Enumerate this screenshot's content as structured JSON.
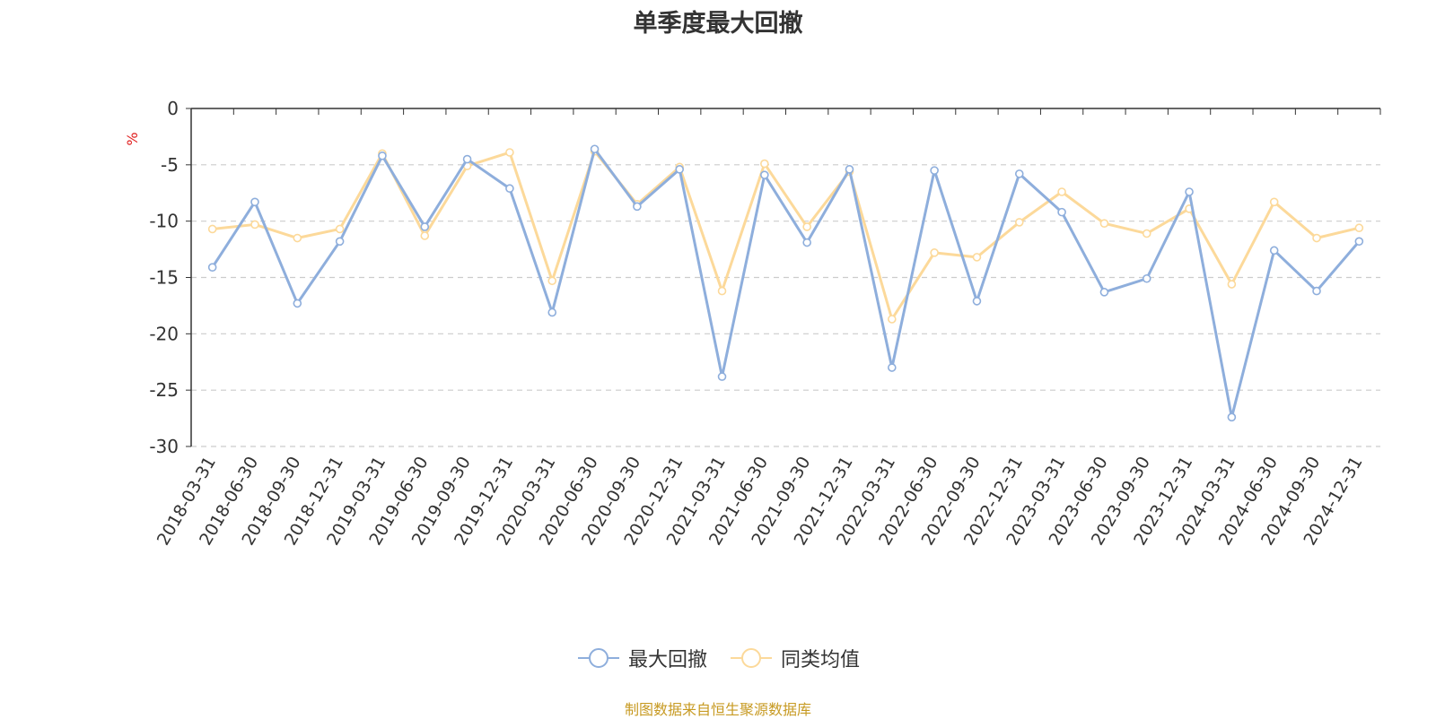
{
  "colors": {
    "series1": "#8eaedc",
    "series2": "#fcd99a",
    "axis": "#333333",
    "grid": "#cccccc",
    "unit": "#e02020",
    "source": "#c79a22"
  },
  "source_note": "制图数据来自恒生聚源数据库",
  "chart_data": {
    "type": "line",
    "title": "单季度最大回撤",
    "ylabel": "%",
    "xlabel": "",
    "ylim": [
      -30,
      0
    ],
    "yticks": [
      0,
      -5,
      -10,
      -15,
      -20,
      -25,
      -30
    ],
    "grid": true,
    "legend_position": "bottom-center",
    "categories": [
      "2018-03-31",
      "2018-06-30",
      "2018-09-30",
      "2018-12-31",
      "2019-03-31",
      "2019-06-30",
      "2019-09-30",
      "2019-12-31",
      "2020-03-31",
      "2020-06-30",
      "2020-09-30",
      "2020-12-31",
      "2021-03-31",
      "2021-06-30",
      "2021-09-30",
      "2021-12-31",
      "2022-03-31",
      "2022-06-30",
      "2022-09-30",
      "2022-12-31",
      "2023-03-31",
      "2023-06-30",
      "2023-09-30",
      "2023-12-31",
      "2024-03-31",
      "2024-06-30",
      "2024-09-30",
      "2024-12-31"
    ],
    "series": [
      {
        "name": "最大回撤",
        "values": [
          -14.1,
          -8.3,
          -17.3,
          -11.8,
          -4.2,
          -10.5,
          -4.5,
          -7.1,
          -18.1,
          -3.6,
          -8.7,
          -5.4,
          -23.8,
          -5.9,
          -11.9,
          -5.4,
          -23.0,
          -5.5,
          -17.1,
          -5.8,
          -9.2,
          -16.3,
          -15.1,
          -7.4,
          -27.4,
          -12.6,
          -16.2,
          -11.8
        ]
      },
      {
        "name": "同类均值",
        "values": [
          -10.7,
          -10.3,
          -11.5,
          -10.7,
          -4.0,
          -11.3,
          -5.1,
          -3.9,
          -15.3,
          -3.8,
          -8.5,
          -5.2,
          -16.2,
          -4.9,
          -10.5,
          -5.6,
          -18.7,
          -12.8,
          -13.2,
          -10.1,
          -7.4,
          -10.2,
          -11.1,
          -8.9,
          -15.6,
          -8.3,
          -11.5,
          -10.6
        ]
      }
    ]
  }
}
